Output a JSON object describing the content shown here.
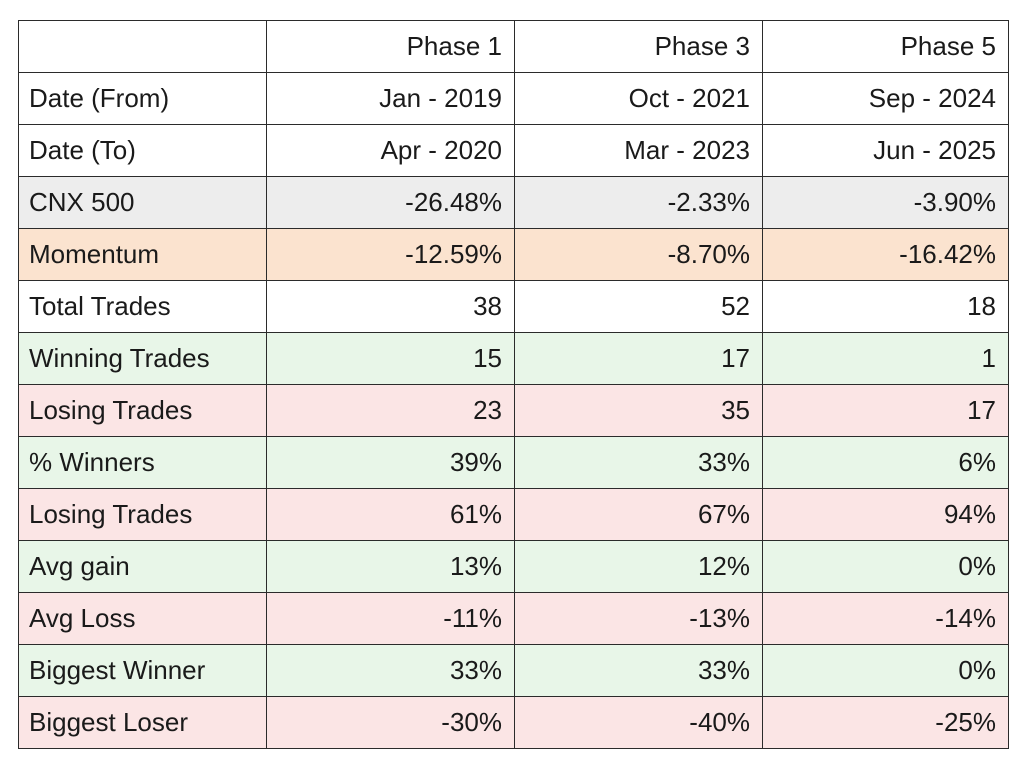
{
  "table": {
    "header": [
      "",
      "Phase 1",
      "Phase 3",
      "Phase 5"
    ],
    "rows": [
      {
        "label": "Date (From)",
        "values": [
          "Jan - 2019",
          "Oct - 2021",
          "Sep - 2024"
        ],
        "color": "#ffffff"
      },
      {
        "label": "Date (To)",
        "values": [
          "Apr - 2020",
          "Mar - 2023",
          "Jun - 2025"
        ],
        "color": "#ffffff"
      },
      {
        "label": "CNX 500",
        "values": [
          "-26.48%",
          "-2.33%",
          "-3.90%"
        ],
        "color": "#ededed"
      },
      {
        "label": "Momentum",
        "values": [
          "-12.59%",
          "-8.70%",
          "-16.42%"
        ],
        "color": "#fbe3cf"
      },
      {
        "label": "Total Trades",
        "values": [
          "38",
          "52",
          "18"
        ],
        "color": "#ffffff"
      },
      {
        "label": "Winning Trades",
        "values": [
          "15",
          "17",
          "1"
        ],
        "color": "#e8f6e8"
      },
      {
        "label": "Losing Trades",
        "values": [
          "23",
          "35",
          "17"
        ],
        "color": "#fbe5e5"
      },
      {
        "label": "% Winners",
        "values": [
          "39%",
          "33%",
          "6%"
        ],
        "color": "#e8f6e8"
      },
      {
        "label": "Losing Trades",
        "values": [
          "61%",
          "67%",
          "94%"
        ],
        "color": "#fbe5e5"
      },
      {
        "label": "Avg gain",
        "values": [
          "13%",
          "12%",
          "0%"
        ],
        "color": "#e8f6e8"
      },
      {
        "label": "Avg Loss",
        "values": [
          "-11%",
          "-13%",
          "-14%"
        ],
        "color": "#fbe5e5"
      },
      {
        "label": "Biggest Winner",
        "values": [
          "33%",
          "33%",
          "0%"
        ],
        "color": "#e8f6e8"
      },
      {
        "label": "Biggest Loser",
        "values": [
          "-30%",
          "-40%",
          "-25%"
        ],
        "color": "#fbe5e5"
      }
    ]
  }
}
